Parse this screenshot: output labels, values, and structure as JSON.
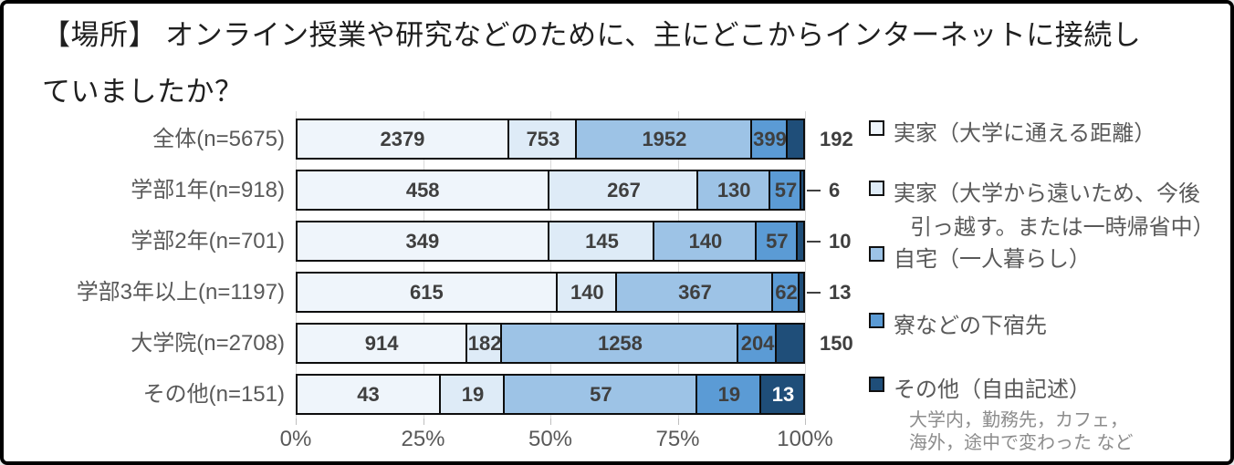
{
  "frame": {
    "title_line1": "【場所】 オンライン授業や研究などのために、主にどこからインターネットに接続し",
    "title_line2": "ていましたか？"
  },
  "chart_data": {
    "type": "bar",
    "stacked": true,
    "orientation": "horizontal",
    "title": "【場所】 オンライン授業や研究などのために、主にどこからインターネットに接続していましたか？",
    "x_ticks": [
      "0%",
      "25%",
      "50%",
      "75%",
      "100%"
    ],
    "xlim": [
      0,
      100
    ],
    "grid": true,
    "legend_position": "right",
    "series_names": [
      "実家（大学に通える距離）",
      "実家（大学から遠いため、今後引っ越す。または一時帰省中）",
      "自宅（一人暮らし）",
      "寮などの下宿先",
      "その他（自由記述）"
    ],
    "rows": [
      {
        "label": "全体(n=5675)",
        "n": 5675,
        "values": [
          2379,
          753,
          1952,
          399,
          192
        ],
        "last_value_placement": "outside",
        "leader_line": false
      },
      {
        "label": "学部1年(n=918)",
        "n": 918,
        "values": [
          458,
          267,
          130,
          57,
          6
        ],
        "last_value_placement": "outside",
        "leader_line": true
      },
      {
        "label": "学部2年(n=701)",
        "n": 701,
        "values": [
          349,
          145,
          140,
          57,
          10
        ],
        "last_value_placement": "outside",
        "leader_line": true
      },
      {
        "label": "学部3年以上(n=1197)",
        "n": 1197,
        "values": [
          615,
          140,
          367,
          62,
          13
        ],
        "last_value_placement": "outside",
        "leader_line": true
      },
      {
        "label": "大学院(n=2708)",
        "n": 2708,
        "values": [
          914,
          182,
          1258,
          204,
          150
        ],
        "last_value_placement": "outside",
        "leader_line": false
      },
      {
        "label": "その他(n=151)",
        "n": 151,
        "values": [
          43,
          19,
          57,
          19,
          13
        ],
        "last_value_placement": "inside-white",
        "leader_line": false
      }
    ],
    "legend": {
      "items": [
        {
          "label": "実家（大学に通える距離）",
          "lines": [
            "実家（大学に通える距離）"
          ]
        },
        {
          "label": "実家（大学から遠いため、今後引っ越す。または一時帰省中）",
          "lines": [
            "実家（大学から遠いため、今後",
            "引っ越す。または一時帰省中）"
          ]
        },
        {
          "label": "自宅（一人暮らし）",
          "lines": [
            "自宅（一人暮らし）"
          ]
        },
        {
          "label": "寮などの下宿先",
          "lines": [
            "寮などの下宿先"
          ]
        },
        {
          "label": "その他（自由記述）",
          "lines": [
            "その他（自由記述）"
          ],
          "note": "大学内，勤務先，カフェ，海外，途中で変わった など",
          "note_lines": [
            "大学内，勤務先，カフェ，",
            "海外，途中で変わった など"
          ]
        }
      ]
    }
  },
  "colors": {
    "palette": [
      "#EFF5FB",
      "#DEEBF7",
      "#9DC3E6",
      "#5B9BD5",
      "#1F4E79"
    ],
    "segment_border": "#0D0D0D",
    "gridline": "#D9D9D9",
    "axis_tick": "#BFBFBF",
    "axis_text": "#595959",
    "category_text": "#595959",
    "value_label": "#3F3F3F",
    "value_label_inverse": "#FFFFFF",
    "legend_text": "#595959",
    "legend_note_text": "#8C8C8C",
    "title_text": "#1F1F1F",
    "frame_border": "#000000",
    "background": "#FFFFFF"
  }
}
